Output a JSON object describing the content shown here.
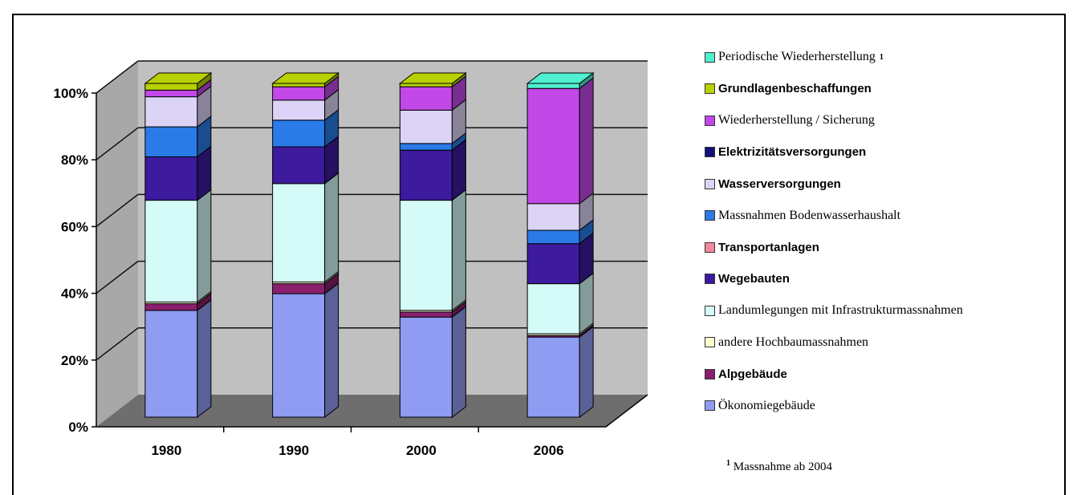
{
  "chart_data": {
    "type": "bar",
    "stacked": true,
    "three_d": true,
    "categories": [
      "1980",
      "1990",
      "2000",
      "2006"
    ],
    "y_ticks": [
      "0%",
      "20%",
      "40%",
      "60%",
      "80%",
      "100%"
    ],
    "ylim": [
      0,
      100
    ],
    "legend_position": "right",
    "series": [
      {
        "name": "Ökonomiegebäude",
        "color": "#8f9cf2",
        "values": [
          32,
          37,
          30,
          24
        ]
      },
      {
        "name": "Alpgebäude",
        "color": "#8a1f6e",
        "values": [
          2,
          3,
          1.5,
          0.5
        ]
      },
      {
        "name": "andere Hochbaumassnahmen",
        "color": "#ffffd0",
        "values": [
          0.5,
          0.5,
          0.5,
          0.5
        ]
      },
      {
        "name": "Landumlegungen mit Infrastrukturmassnahmen",
        "color": "#d4fbf7",
        "values": [
          30.5,
          29.5,
          33,
          15
        ]
      },
      {
        "name": "Wegebauten",
        "color": "#3d1a9e",
        "values": [
          13,
          11,
          15,
          12
        ]
      },
      {
        "name": "Transportanlagen",
        "color": "#f28a9e",
        "values": [
          0,
          0,
          0,
          0
        ]
      },
      {
        "name": "Massnahmen Bodenwasserhaushalt",
        "color": "#2a7ae8",
        "values": [
          9,
          8,
          2,
          4
        ]
      },
      {
        "name": "Wasserversorgungen",
        "color": "#dcd4f7",
        "values": [
          9,
          6,
          10,
          8
        ]
      },
      {
        "name": "Elektrizitätsversorgungen",
        "color": "#13107a",
        "values": [
          0,
          0,
          0,
          0
        ]
      },
      {
        "name": "Wiederherstellung / Sicherung",
        "color": "#c248e8",
        "values": [
          2,
          4,
          7,
          34.5
        ]
      },
      {
        "name": "Grundlagenbeschaffungen",
        "color": "#b8d100",
        "values": [
          2,
          1,
          1,
          0
        ]
      },
      {
        "name": "Periodische Wiederherstellung",
        "color": "#50efd0",
        "values": [
          0,
          0,
          0,
          1.5
        ]
      }
    ]
  },
  "legend_fonts": [
    "serif",
    "sans",
    "serif",
    "sans",
    "sans",
    "serif",
    "sans",
    "sans",
    "serif",
    "serif",
    "sans",
    "serif"
  ],
  "legend_footnote_mark": "1",
  "footnote": {
    "mark": "1",
    "text": "Massnahme ab 2004"
  }
}
